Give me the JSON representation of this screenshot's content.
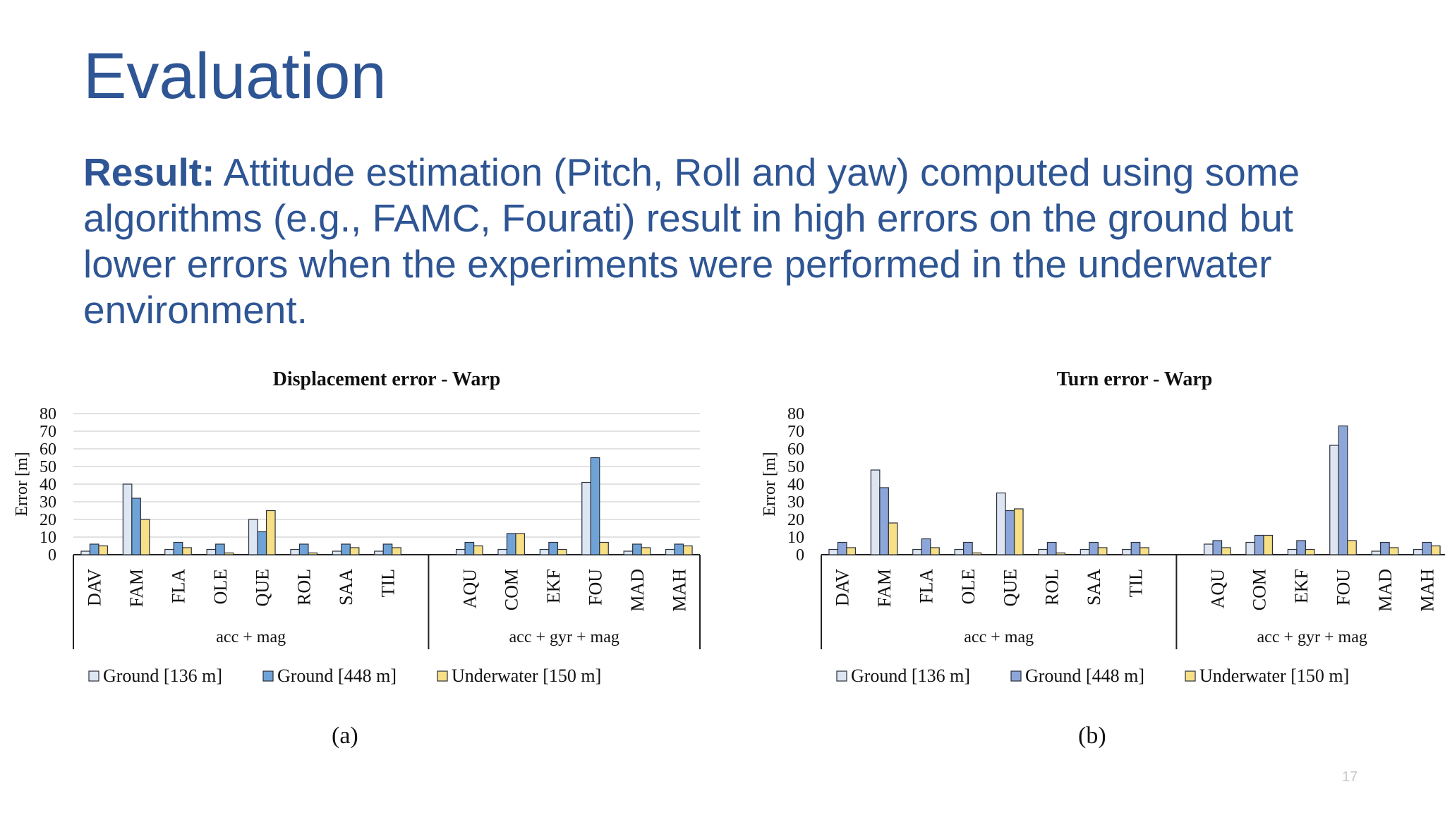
{
  "slide": {
    "title": "Evaluation",
    "body_bold": "Result:",
    "body_text": " Attitude estimation (Pitch, Roll and yaw) computed using some algorithms (e.g., FAMC, Fourati) result in high errors on the ground but lower errors when the experiments were performed in the underwater environment.",
    "page_number": "17"
  },
  "captions": [
    "(a)",
    "(b)"
  ],
  "chart_data": [
    {
      "type": "bar",
      "title": "Displacement error - Warp",
      "ylabel": "Error [m]",
      "ylim": [
        0,
        80
      ],
      "yticks": [
        0,
        10,
        20,
        30,
        40,
        50,
        60,
        70,
        80
      ],
      "grid": true,
      "legend_position": "bottom",
      "categories": [
        "DAV",
        "FAM",
        "FLA",
        "OLE",
        "QUE",
        "ROL",
        "SAA",
        "TIL",
        "AQU",
        "COM",
        "EKF",
        "FOU",
        "MAD",
        "MAH"
      ],
      "groups": [
        {
          "label": "acc + mag",
          "count": 8
        },
        {
          "label": "acc + gyr + mag",
          "count": 6
        }
      ],
      "series": [
        {
          "name": "Ground [136 m]",
          "color": "#dde6f3",
          "values": [
            2,
            40,
            3,
            3,
            20,
            3,
            2,
            2,
            3,
            3,
            3,
            41,
            2,
            3
          ]
        },
        {
          "name": "Ground [448 m]",
          "color": "#6fa3d8",
          "values": [
            6,
            32,
            7,
            6,
            13,
            6,
            6,
            6,
            7,
            12,
            7,
            55,
            6,
            6
          ]
        },
        {
          "name": "Underwater [150 m]",
          "color": "#f7df86",
          "values": [
            5,
            20,
            4,
            1,
            25,
            1,
            4,
            4,
            5,
            12,
            3,
            7,
            4,
            5
          ]
        }
      ]
    },
    {
      "type": "bar",
      "title": "Turn error - Warp",
      "ylabel": "Error [m]",
      "ylim": [
        0,
        80
      ],
      "yticks": [
        0,
        10,
        20,
        30,
        40,
        50,
        60,
        70,
        80
      ],
      "grid": false,
      "legend_position": "bottom",
      "categories": [
        "DAV",
        "FAM",
        "FLA",
        "OLE",
        "QUE",
        "ROL",
        "SAA",
        "TIL",
        "AQU",
        "COM",
        "EKF",
        "FOU",
        "MAD",
        "MAH"
      ],
      "groups": [
        {
          "label": "acc + mag",
          "count": 8
        },
        {
          "label": "acc + gyr + mag",
          "count": 6
        }
      ],
      "series": [
        {
          "name": "Ground [136 m]",
          "color": "#dde4f2",
          "values": [
            3,
            48,
            3,
            3,
            35,
            3,
            3,
            3,
            6,
            7,
            3,
            62,
            2,
            3
          ]
        },
        {
          "name": "Ground [448 m]",
          "color": "#8ca6d9",
          "values": [
            7,
            38,
            9,
            7,
            25,
            7,
            7,
            7,
            8,
            11,
            8,
            73,
            7,
            7
          ]
        },
        {
          "name": "Underwater [150 m]",
          "color": "#f7df86",
          "values": [
            4,
            18,
            4,
            1,
            26,
            1,
            4,
            4,
            4,
            11,
            3,
            8,
            4,
            5
          ]
        }
      ]
    }
  ]
}
